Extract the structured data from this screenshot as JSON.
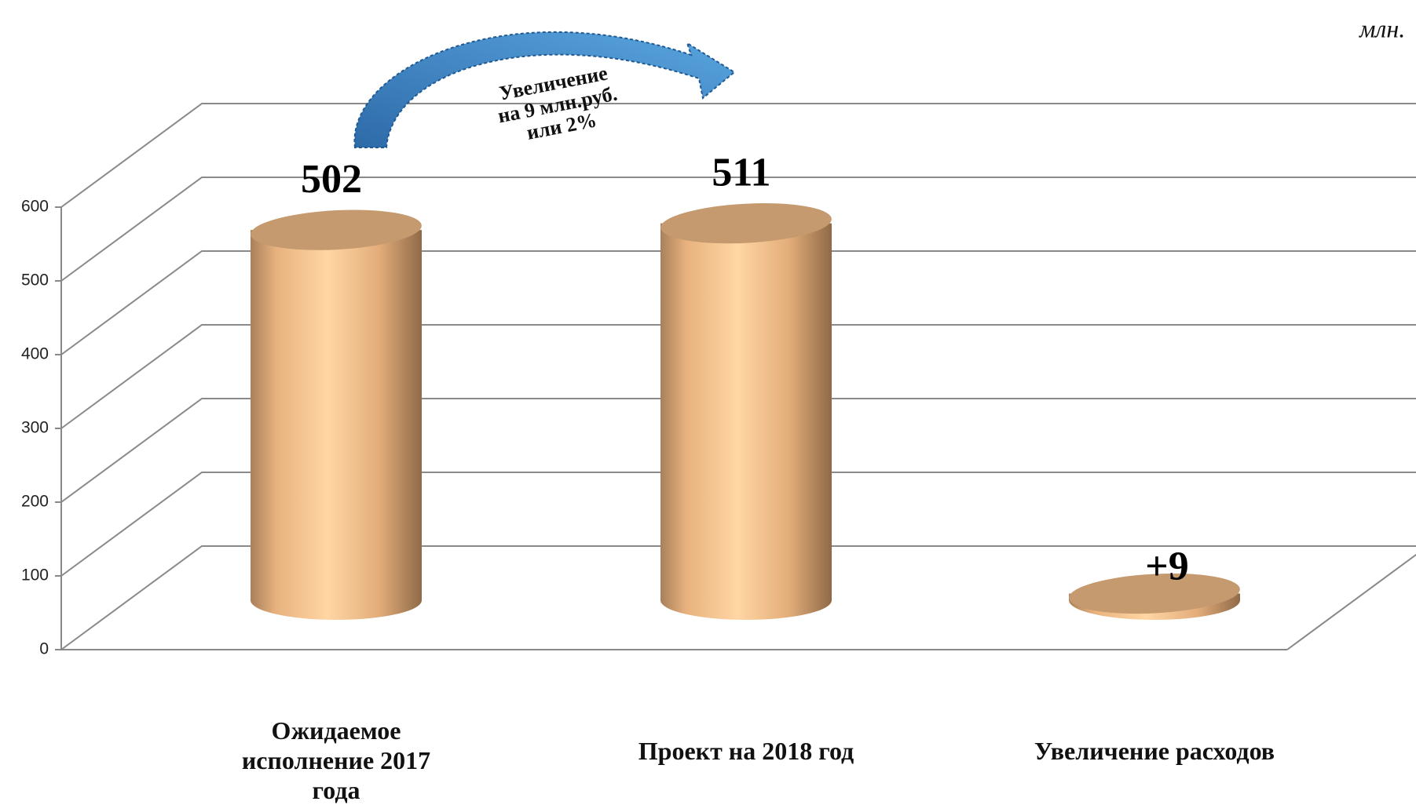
{
  "chart_data": {
    "type": "bar3d",
    "unit": "млн.",
    "annotation": [
      "Увеличение",
      "на 9 млн.руб.",
      "или 2%"
    ],
    "categories": [
      "Ожидаемое исполнение 2017 года",
      "Проект на 2018 год",
      "Увеличение расходов"
    ],
    "values": [
      502,
      511,
      9
    ],
    "value_labels": [
      "502",
      "511",
      "+9"
    ],
    "color": "#f4c08a",
    "ylim": [
      0,
      600
    ],
    "yticks": [
      0,
      100,
      200,
      300,
      400,
      500,
      600
    ],
    "grid": true
  }
}
